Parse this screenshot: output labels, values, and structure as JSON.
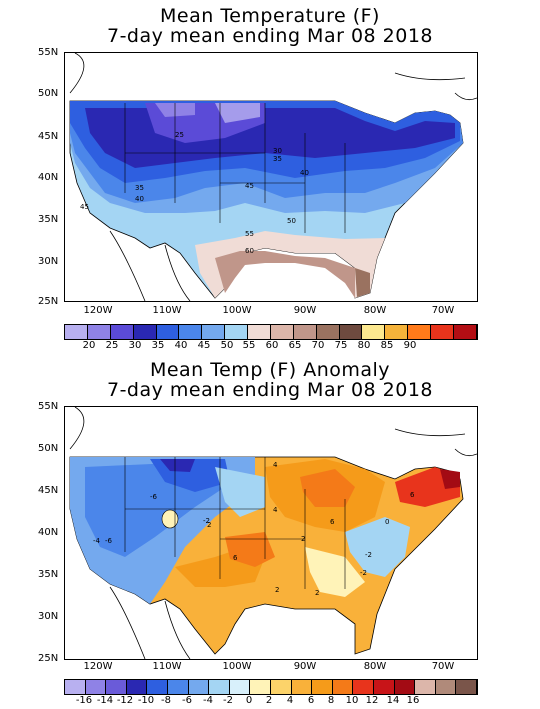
{
  "top": {
    "title_line1": "Mean Temperature (F)",
    "title_line2": "7-day mean ending Mar 08 2018",
    "lat_labels": [
      "55N",
      "50N",
      "45N",
      "40N",
      "35N",
      "30N",
      "25N"
    ],
    "lon_labels": [
      "120W",
      "110W",
      "100W",
      "90W",
      "80W",
      "70W"
    ],
    "contour_labels": [
      "25",
      "30",
      "35",
      "35",
      "40",
      "40",
      "45",
      "45",
      "50",
      "55",
      "60"
    ],
    "colorbar": {
      "colors": [
        "#b8b0f0",
        "#8f82e6",
        "#5b4bd7",
        "#2a28b2",
        "#2e5fe0",
        "#4b86ea",
        "#74a9ee",
        "#a4d5f3",
        "#f0dcd6",
        "#dcb6aa",
        "#c0968a",
        "#9a7260",
        "#6e4a3f",
        "#fce88f",
        "#f5b33a",
        "#ff7a1a",
        "#e8341c",
        "#b30e14"
      ],
      "labels": [
        "20",
        "25",
        "30",
        "35",
        "40",
        "45",
        "50",
        "55",
        "60",
        "65",
        "70",
        "75",
        "80",
        "85",
        "90"
      ]
    }
  },
  "bottom": {
    "title_line1": "Mean Temp (F) Anomaly",
    "title_line2": "7-day mean ending Mar 08 2018",
    "lat_labels": [
      "55N",
      "50N",
      "45N",
      "40N",
      "35N",
      "30N",
      "25N"
    ],
    "lon_labels": [
      "120W",
      "110W",
      "100W",
      "90W",
      "80W",
      "70W"
    ],
    "contour_labels": [
      "-6",
      "-4",
      "-6",
      "-2",
      "4",
      "2",
      "6",
      "6",
      "2",
      "-2",
      "2",
      "2",
      "0",
      "-2",
      "6",
      "4"
    ],
    "colorbar": {
      "colors": [
        "#b8b0f0",
        "#8f82e6",
        "#6a5bd9",
        "#2a28b2",
        "#2e5fe0",
        "#4b86ea",
        "#74a9ee",
        "#a4d5f3",
        "#d8f0fb",
        "#fff3b8",
        "#fcd36a",
        "#f9b13a",
        "#f59b1a",
        "#f47a18",
        "#e8341c",
        "#c81418",
        "#a30b14",
        "#dcb6aa",
        "#b08a7a",
        "#7a554a"
      ],
      "labels": [
        "-16",
        "-14",
        "-12",
        "-10",
        "-8",
        "-6",
        "-4",
        "-2",
        "0",
        "2",
        "4",
        "6",
        "8",
        "10",
        "12",
        "14",
        "16"
      ]
    }
  }
}
